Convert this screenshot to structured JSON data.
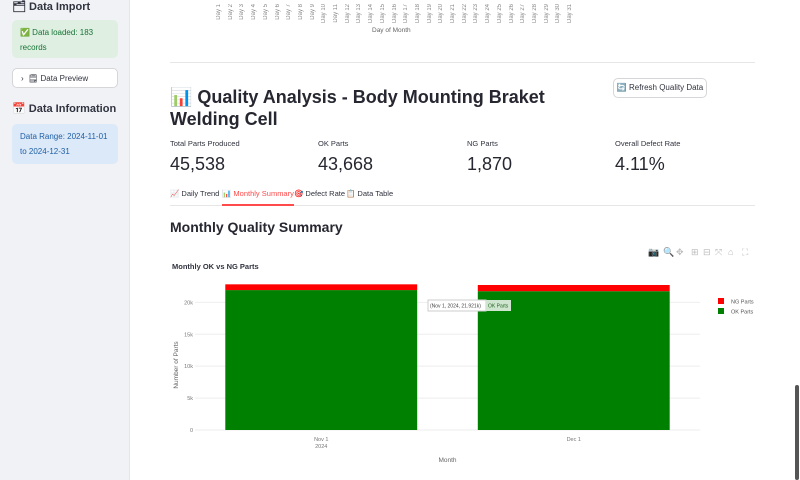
{
  "sidebar": {
    "import_heading": "Data Import",
    "loaded_msg": "✅ Data loaded: 183 records",
    "preview_label": "Data Preview",
    "info_heading": "Data Information",
    "range_msg": "Data Range: 2024-11-01 to 2024-12-31"
  },
  "top_chart": {
    "days": [
      "Day 1",
      "Day 2",
      "Day 3",
      "Day 4",
      "Day 5",
      "Day 6",
      "Day 7",
      "Day 8",
      "Day 9",
      "Day 10",
      "Day 11",
      "Day 12",
      "Day 13",
      "Day 14",
      "Day 15",
      "Day 16",
      "Day 17",
      "Day 18",
      "Day 19",
      "Day 20",
      "Day 21",
      "Day 22",
      "Day 23",
      "Day 24",
      "Day 25",
      "Day 26",
      "Day 27",
      "Day 28",
      "Day 29",
      "Day 30",
      "Day 31"
    ],
    "xlabel": "Day of Month"
  },
  "header": {
    "title": "📊 Quality Analysis - Body Mounting Braket Welding Cell",
    "refresh_label": "🔄 Refresh Quality Data"
  },
  "metrics": [
    {
      "label": "Total Parts Produced",
      "value": "45,538"
    },
    {
      "label": "OK Parts",
      "value": "43,668"
    },
    {
      "label": "NG Parts",
      "value": "1,870"
    },
    {
      "label": "Overall Defect Rate",
      "value": "4.11%"
    }
  ],
  "tabs": [
    "📈 Daily Trend",
    "📊 Monthly Summary",
    "🎯 Defect Rate",
    "📋 Data Table"
  ],
  "active_tab": 1,
  "section_title": "Monthly Quality Summary",
  "chart_data": {
    "type": "bar",
    "stacked": true,
    "title": "Monthly OK vs NG Parts",
    "categories": [
      "Nov 1\n2024",
      "Dec 1"
    ],
    "series": [
      {
        "name": "OK Parts",
        "color": "#008000",
        "values": [
          21921,
          21747
        ]
      },
      {
        "name": "NG Parts",
        "color": "#ff0000",
        "values": [
          900,
          970
        ]
      }
    ],
    "xlabel": "Month",
    "ylabel": "Number of Parts",
    "ylim": [
      0,
      23500
    ],
    "yticks": [
      0,
      5000,
      10000,
      15000,
      20000
    ],
    "ytick_labels": [
      "0",
      "5k",
      "10k",
      "15k",
      "20k"
    ],
    "legend": "top-right",
    "tooltip": {
      "text": "(Nov 1, 2024, 21.921k)",
      "series": "OK Parts"
    }
  }
}
